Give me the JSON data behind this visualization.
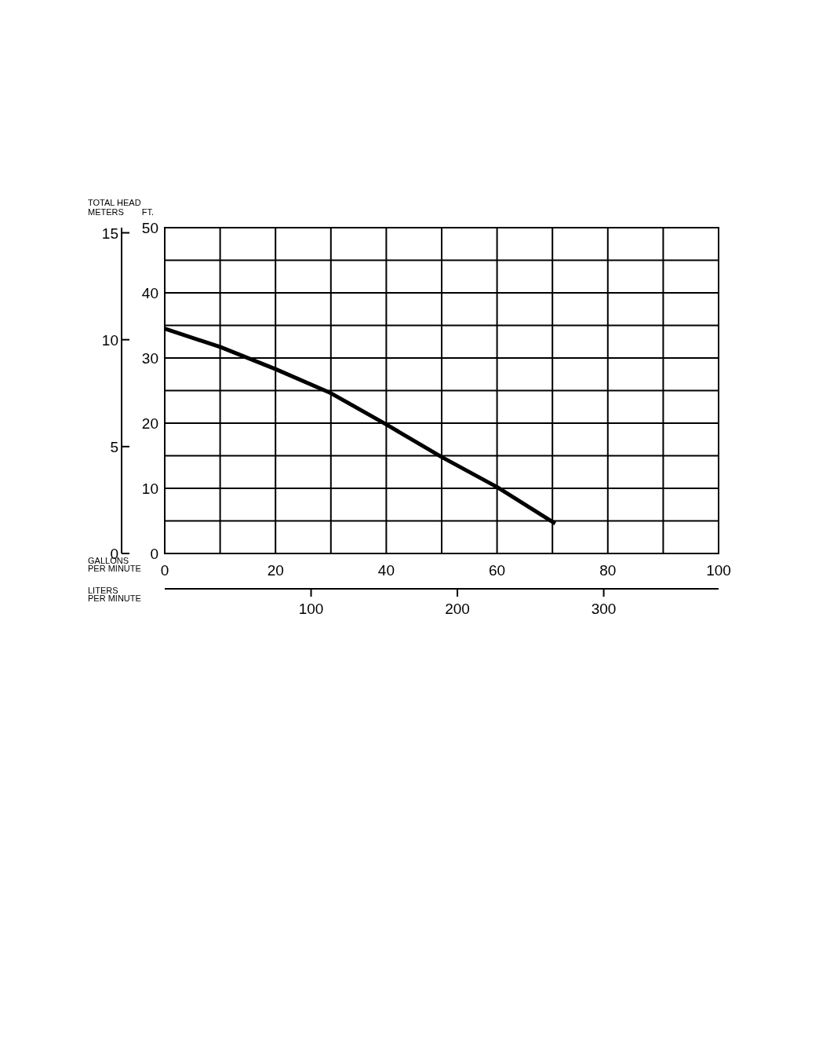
{
  "chart_data": {
    "type": "line",
    "xlabel": "GALLONS PER MINUTE",
    "x2label": "LITERS PER MINUTE",
    "ylabel": "FT.",
    "y2label": "METERS",
    "annotations": [
      "TOTAL HEAD"
    ],
    "x": [
      0,
      10,
      20,
      30,
      40,
      50,
      60,
      70.5
    ],
    "series": [
      {
        "color": "#000000",
        "values": [
          34.5,
          31.7,
          28.3,
          24.6,
          19.8,
          14.8,
          10.2,
          4.6
        ]
      }
    ],
    "xlim": [
      0,
      100
    ],
    "xticks": [
      0,
      20,
      40,
      60,
      80,
      100
    ],
    "ylim": [
      0,
      50
    ],
    "yticks": [
      0,
      10,
      20,
      30,
      40,
      50
    ],
    "y2lim": [
      0,
      15.24
    ],
    "y2ticks": [
      0,
      5,
      10,
      15
    ],
    "x2lim": [
      0,
      378.5
    ],
    "x2ticks": [
      100,
      200,
      300
    ],
    "grid": true,
    "line_style": "solid"
  }
}
